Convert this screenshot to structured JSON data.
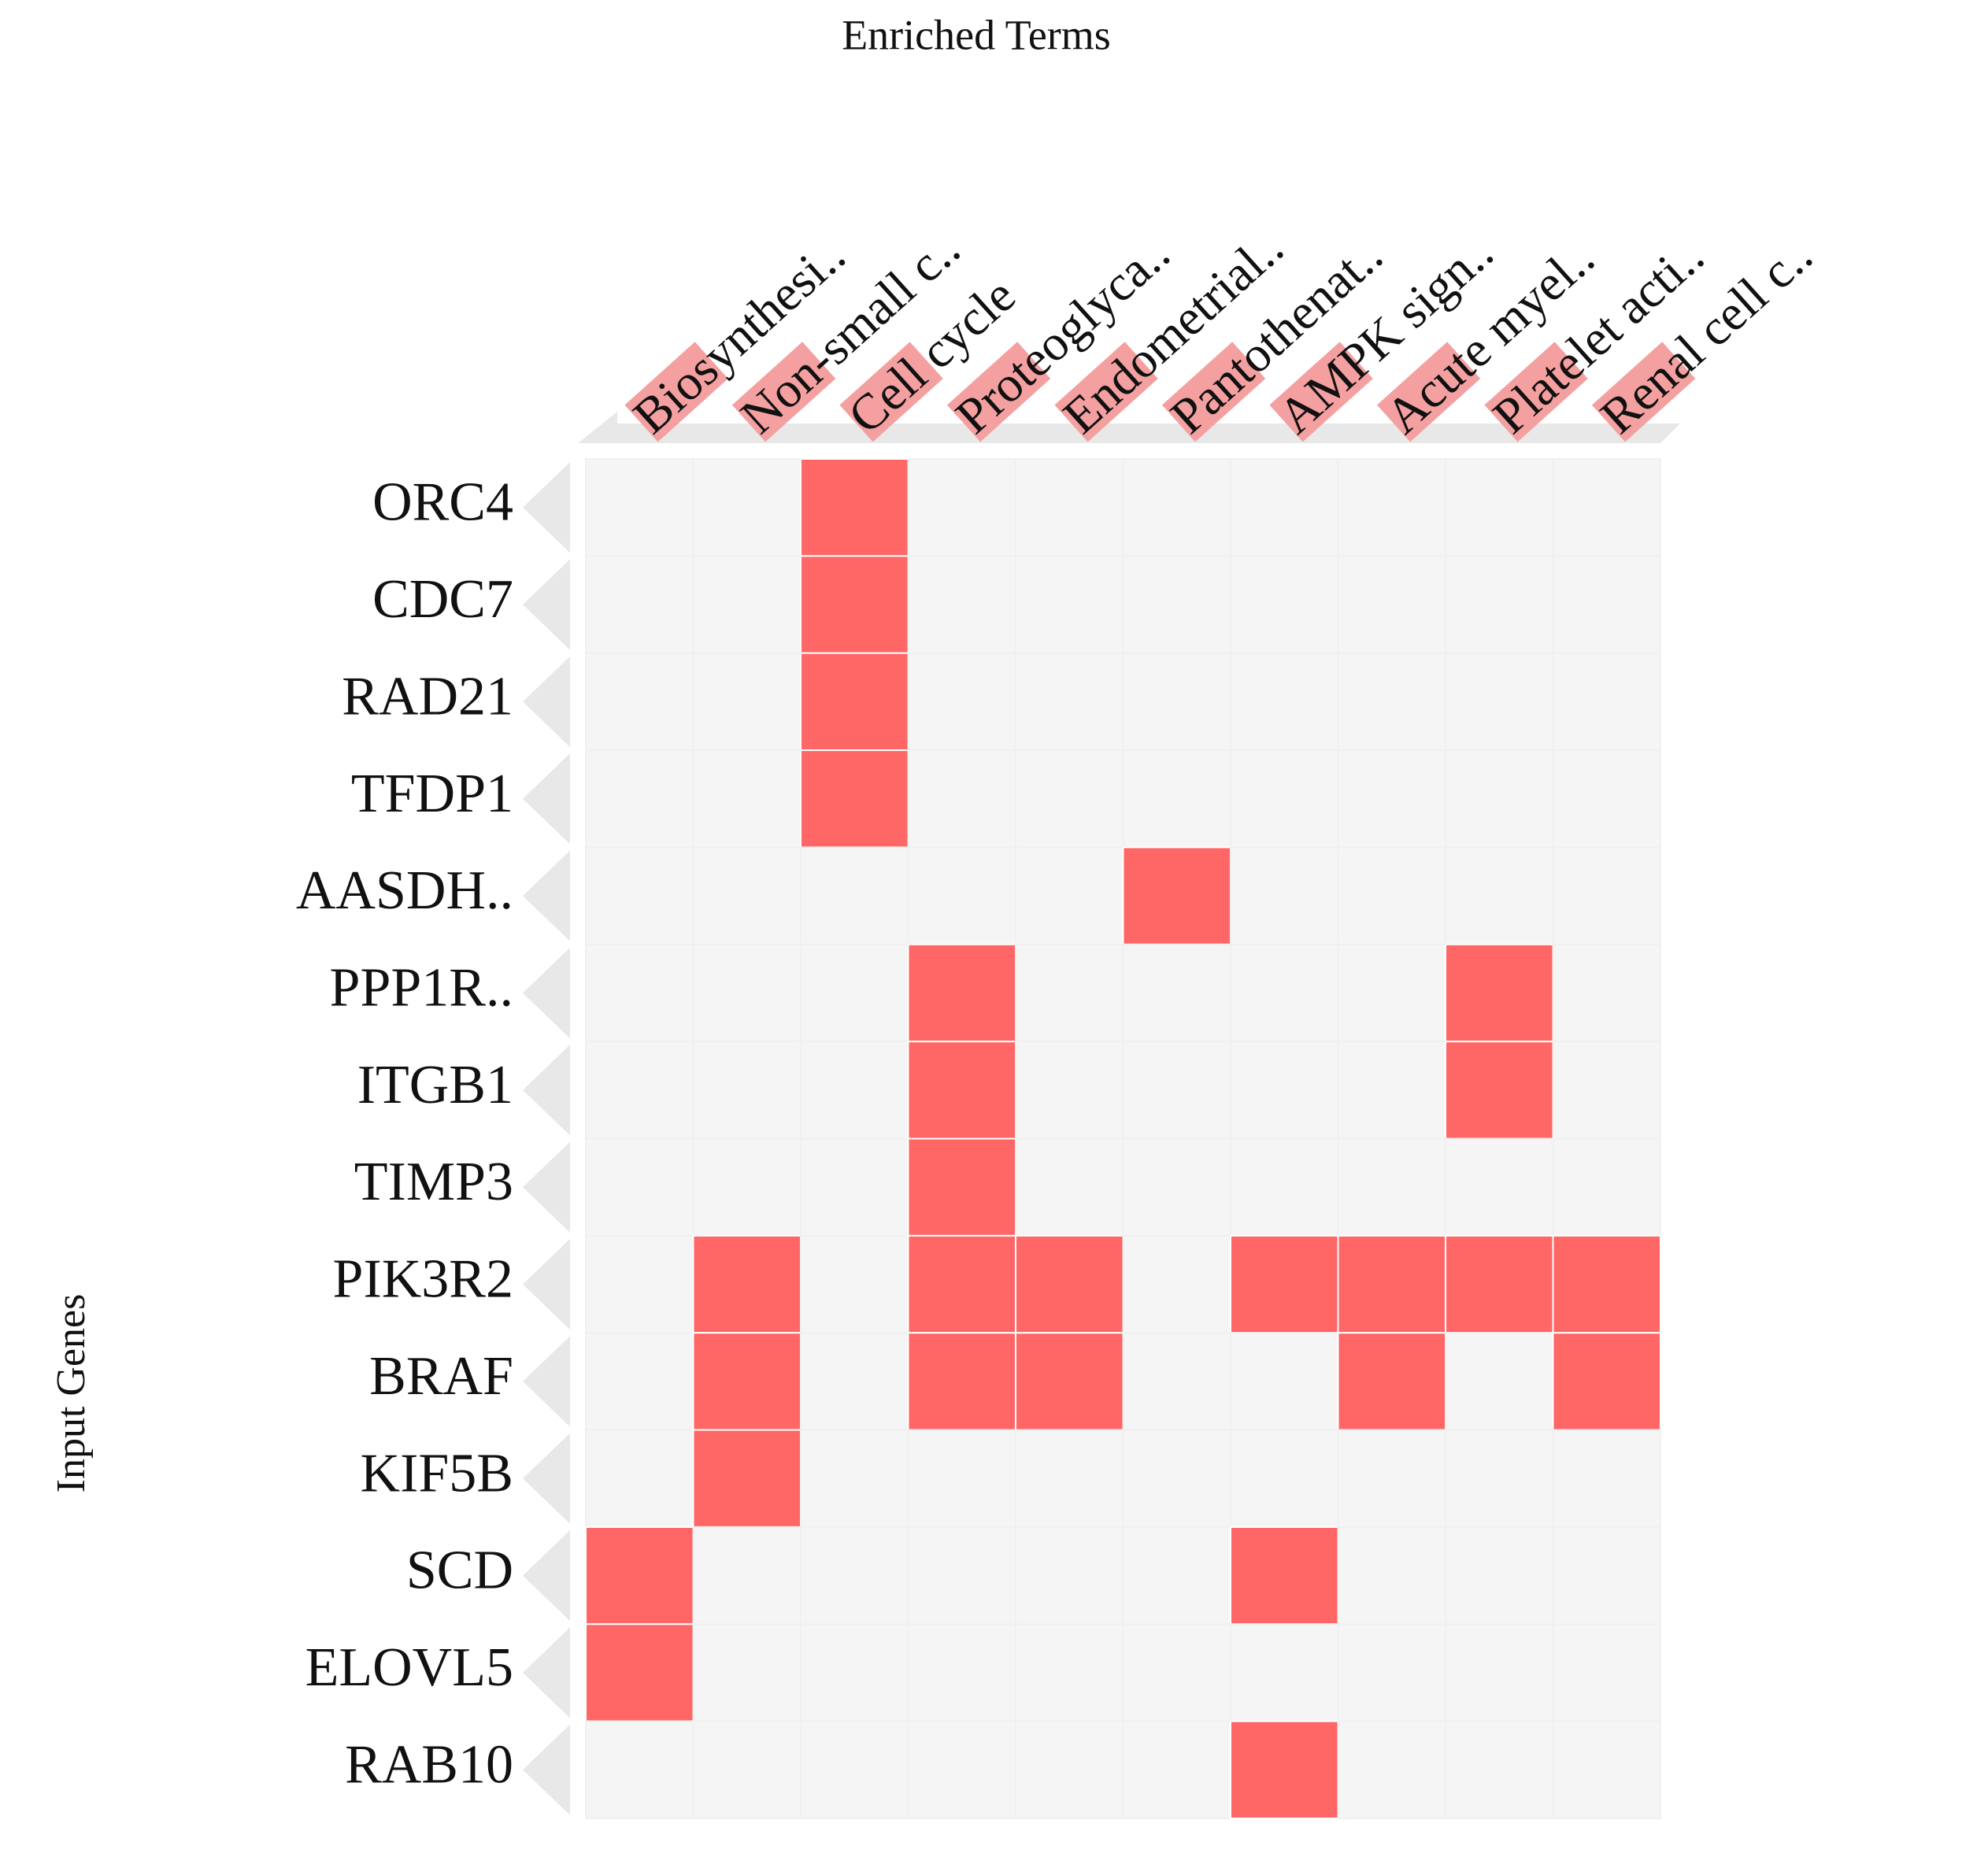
{
  "chart_data": {
    "type": "heatmap",
    "title": "Enriched Terms",
    "y_label": "Input Genes",
    "x_categories": [
      "Biosynthesi..",
      "Non-small c..",
      "Cell cycle",
      "Proteoglyca..",
      "Endometrial..",
      "Pantothenat..",
      "AMPK sign..",
      "Acute myel..",
      "Platelet acti..",
      "Renal cell c.."
    ],
    "y_categories": [
      "ORC4",
      "CDC7",
      "RAD21",
      "TFDP1",
      "AASDH..",
      "PPP1R..",
      "ITGB1",
      "TIMP3",
      "PIK3R2",
      "BRAF",
      "KIF5B",
      "SCD",
      "ELOVL5",
      "RAB10"
    ],
    "values": [
      [
        0,
        0,
        1,
        0,
        0,
        0,
        0,
        0,
        0,
        0
      ],
      [
        0,
        0,
        1,
        0,
        0,
        0,
        0,
        0,
        0,
        0
      ],
      [
        0,
        0,
        1,
        0,
        0,
        0,
        0,
        0,
        0,
        0
      ],
      [
        0,
        0,
        1,
        0,
        0,
        0,
        0,
        0,
        0,
        0
      ],
      [
        0,
        0,
        0,
        0,
        0,
        1,
        0,
        0,
        0,
        0
      ],
      [
        0,
        0,
        0,
        1,
        0,
        0,
        0,
        0,
        1,
        0
      ],
      [
        0,
        0,
        0,
        1,
        0,
        0,
        0,
        0,
        1,
        0
      ],
      [
        0,
        0,
        0,
        1,
        0,
        0,
        0,
        0,
        0,
        0
      ],
      [
        0,
        1,
        0,
        1,
        1,
        0,
        1,
        1,
        1,
        1
      ],
      [
        0,
        1,
        0,
        1,
        1,
        0,
        0,
        1,
        0,
        1
      ],
      [
        0,
        1,
        0,
        0,
        0,
        0,
        0,
        0,
        0,
        0
      ],
      [
        1,
        0,
        0,
        0,
        0,
        0,
        1,
        0,
        0,
        0
      ],
      [
        1,
        0,
        0,
        0,
        0,
        0,
        0,
        0,
        0,
        0
      ],
      [
        0,
        0,
        0,
        0,
        0,
        0,
        1,
        0,
        0,
        0
      ]
    ],
    "color": "#ff6666",
    "empty_color": "#f5f5f5"
  }
}
